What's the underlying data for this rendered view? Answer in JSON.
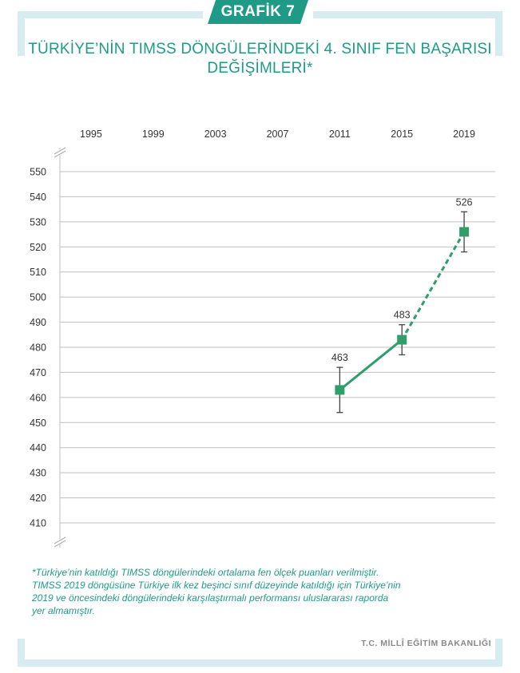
{
  "badge": "GRAFİK 7",
  "title_line1": "TÜRKİYE’NİN TIMSS DÖNGÜLERİNDEKİ 4. SINIF FEN BAŞARISI",
  "title_line2": "DEĞİŞİMLERİ*",
  "footnote_lines": [
    "*Türkiye’nin katıldığı TIMSS döngülerindeki ortalama fen ölçek puanları verilmiştir.",
    "TIMSS 2019 döngüsüne Türkiye ilk kez beşinci sınıf düzeyinde katıldığı için Türkiye’nin",
    "2019 ve öncesindeki döngülerindeki karşılaştırmalı performansı uluslararası raporda",
    "yer almamıştır."
  ],
  "source": "T.C. MİLLÎ EĞİTİM BAKANLIĞI",
  "colors": {
    "accent": "#1f9a86",
    "line": "#2e9e6b",
    "frame": "#d6ecf1",
    "error_bar": "#444444"
  },
  "chart_data": {
    "type": "line",
    "categories": [
      "1995",
      "1999",
      "2003",
      "2007",
      "2011",
      "2015",
      "2019"
    ],
    "x_axis_position": "top",
    "y_ticks": [
      550,
      540,
      530,
      520,
      510,
      500,
      490,
      480,
      470,
      460,
      450,
      440,
      430,
      420,
      410
    ],
    "ylim": [
      400,
      560
    ],
    "axis_break": true,
    "grid": true,
    "series": [
      {
        "points": [
          {
            "x": "2011",
            "y": 463,
            "err_low": 454,
            "err_high": 472,
            "label": "463"
          },
          {
            "x": "2015",
            "y": 483,
            "err_low": 477,
            "err_high": 489,
            "label": "483"
          },
          {
            "x": "2019",
            "y": 526,
            "err_low": 518,
            "err_high": 534,
            "label": "526"
          }
        ],
        "solid_segment": [
          "2011",
          "2015"
        ],
        "dashed_segment": [
          "2015",
          "2019"
        ]
      }
    ]
  }
}
